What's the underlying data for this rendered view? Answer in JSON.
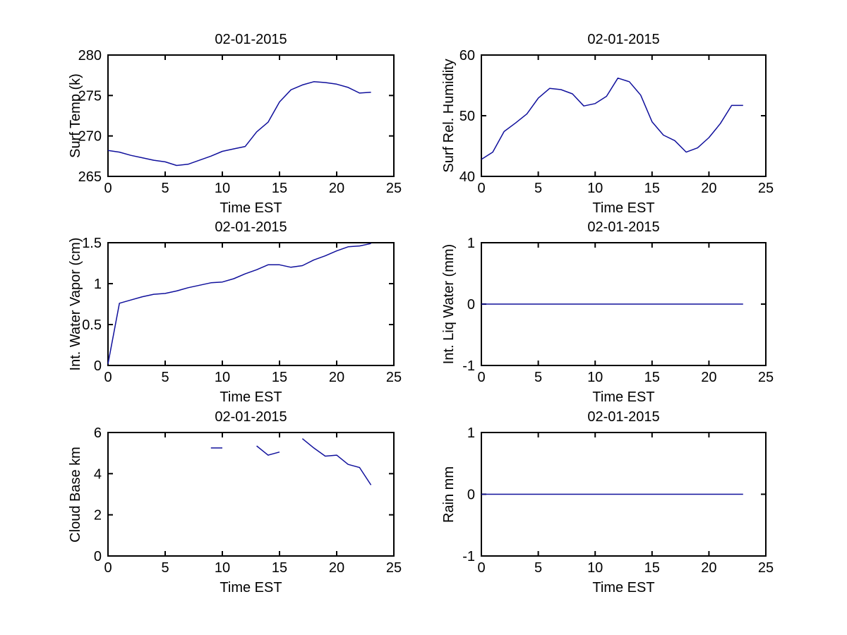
{
  "figure": {
    "background": "#ffffff",
    "axis_color": "#000000",
    "line_color": "#10109c",
    "date_label": "02-01-2015"
  },
  "chart_data": [
    {
      "type": "line",
      "title": "02-01-2015",
      "xlabel": "Time EST",
      "ylabel": "Surf Temp (k)",
      "xlim": [
        0,
        25
      ],
      "ylim": [
        265,
        280
      ],
      "xticks": [
        0,
        5,
        10,
        15,
        20,
        25
      ],
      "yticks": [
        265,
        270,
        275,
        280
      ],
      "grid": false,
      "legend": "none",
      "x": [
        0,
        1,
        2,
        3,
        4,
        5,
        6,
        7,
        8,
        9,
        10,
        11,
        12,
        13,
        14,
        15,
        16,
        17,
        18,
        19,
        20,
        21,
        22,
        23
      ],
      "y": [
        268.2,
        268.0,
        267.6,
        267.3,
        267.0,
        266.8,
        266.35,
        266.5,
        267.0,
        267.5,
        268.1,
        268.4,
        268.7,
        270.5,
        271.7,
        274.2,
        275.7,
        276.3,
        276.7,
        276.6,
        276.4,
        276.0,
        275.3,
        275.4
      ]
    },
    {
      "type": "line",
      "title": "02-01-2015",
      "xlabel": "Time EST",
      "ylabel": "Surf Rel. Humidity",
      "xlim": [
        0,
        25
      ],
      "ylim": [
        40,
        60
      ],
      "xticks": [
        0,
        5,
        10,
        15,
        20,
        25
      ],
      "yticks": [
        40,
        50,
        60
      ],
      "grid": false,
      "legend": "none",
      "x": [
        0,
        1,
        2,
        3,
        4,
        5,
        6,
        7,
        8,
        9,
        10,
        11,
        12,
        13,
        14,
        15,
        16,
        17,
        18,
        19,
        20,
        21,
        22,
        23
      ],
      "y": [
        42.8,
        44.0,
        47.4,
        48.8,
        50.3,
        52.9,
        54.5,
        54.3,
        53.6,
        51.6,
        52.0,
        53.2,
        56.2,
        55.6,
        53.4,
        49.0,
        46.8,
        45.9,
        44.0,
        44.7,
        46.4,
        48.7,
        51.7,
        51.7
      ]
    },
    {
      "type": "line",
      "title": "02-01-2015",
      "xlabel": "Time EST",
      "ylabel": "Int. Water Vapor (cm)",
      "xlim": [
        0,
        25
      ],
      "ylim": [
        0,
        1.5
      ],
      "xticks": [
        0,
        5,
        10,
        15,
        20,
        25
      ],
      "yticks": [
        0,
        0.5,
        1,
        1.5
      ],
      "grid": false,
      "legend": "none",
      "x": [
        0,
        1,
        2,
        3,
        4,
        5,
        6,
        7,
        8,
        9,
        10,
        11,
        12,
        13,
        14,
        15,
        16,
        17,
        18,
        19,
        20,
        21,
        22,
        23
      ],
      "y": [
        0.02,
        0.76,
        0.8,
        0.84,
        0.87,
        0.88,
        0.91,
        0.95,
        0.98,
        1.01,
        1.02,
        1.06,
        1.12,
        1.17,
        1.23,
        1.23,
        1.2,
        1.22,
        1.29,
        1.34,
        1.4,
        1.45,
        1.46,
        1.49
      ]
    },
    {
      "type": "line",
      "title": "02-01-2015",
      "xlabel": "Time EST",
      "ylabel": "Int. Liq Water (mm)",
      "xlim": [
        0,
        25
      ],
      "ylim": [
        -1,
        1
      ],
      "xticks": [
        0,
        5,
        10,
        15,
        20,
        25
      ],
      "yticks": [
        -1,
        0,
        1
      ],
      "grid": false,
      "legend": "none",
      "x": [
        0,
        1,
        2,
        3,
        4,
        5,
        6,
        7,
        8,
        9,
        10,
        11,
        12,
        13,
        14,
        15,
        16,
        17,
        18,
        19,
        20,
        21,
        22,
        23
      ],
      "y": [
        0,
        0,
        0,
        0,
        0,
        0,
        0,
        0,
        0,
        0,
        0,
        0,
        0,
        0,
        0,
        0,
        0,
        0,
        0,
        0,
        0,
        0,
        0,
        0
      ]
    },
    {
      "type": "line",
      "title": "02-01-2015",
      "xlabel": "Time EST",
      "ylabel": "Cloud Base km",
      "xlim": [
        0,
        25
      ],
      "ylim": [
        0,
        6
      ],
      "xticks": [
        0,
        5,
        10,
        15,
        20,
        25
      ],
      "yticks": [
        0,
        2,
        4,
        6
      ],
      "grid": false,
      "legend": "none",
      "x": [
        0,
        1,
        2,
        3,
        4,
        5,
        6,
        7,
        8,
        9,
        10,
        11,
        12,
        13,
        14,
        15,
        16,
        17,
        18,
        19,
        20,
        21,
        22,
        23
      ],
      "y": [
        null,
        null,
        null,
        null,
        null,
        null,
        null,
        null,
        null,
        5.25,
        5.25,
        null,
        null,
        5.35,
        4.9,
        5.05,
        null,
        5.7,
        5.25,
        4.85,
        4.9,
        4.45,
        4.3,
        3.45
      ]
    },
    {
      "type": "line",
      "title": "02-01-2015",
      "xlabel": "Time EST",
      "ylabel": "Rain mm",
      "xlim": [
        0,
        25
      ],
      "ylim": [
        -1,
        1
      ],
      "xticks": [
        0,
        5,
        10,
        15,
        20,
        25
      ],
      "yticks": [
        -1,
        0,
        1
      ],
      "grid": false,
      "legend": "none",
      "x": [
        0,
        1,
        2,
        3,
        4,
        5,
        6,
        7,
        8,
        9,
        10,
        11,
        12,
        13,
        14,
        15,
        16,
        17,
        18,
        19,
        20,
        21,
        22,
        23
      ],
      "y": [
        0,
        0,
        0,
        0,
        0,
        0,
        0,
        0,
        0,
        0,
        0,
        0,
        0,
        0,
        0,
        0,
        0,
        0,
        0,
        0,
        0,
        0,
        0,
        0
      ]
    }
  ]
}
